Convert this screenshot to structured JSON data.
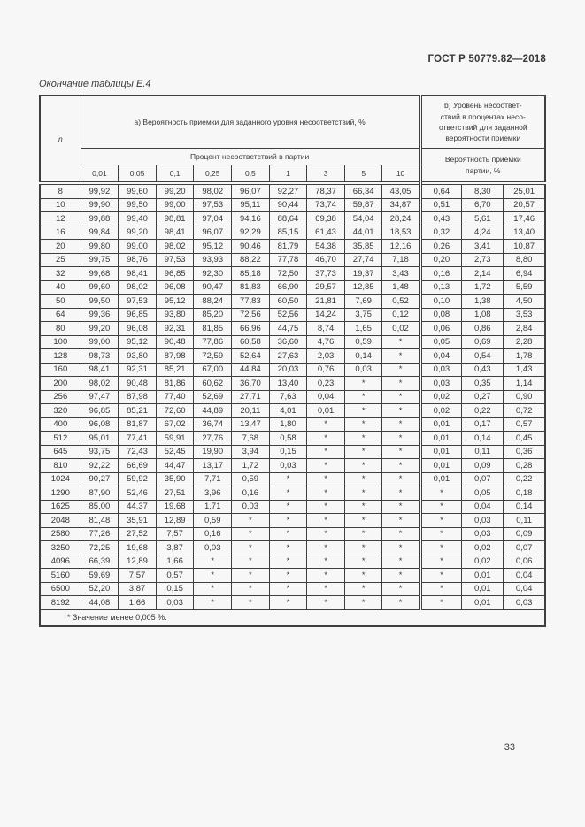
{
  "page": {
    "header_right": "ГОСТ Р 50779.82—2018",
    "table_caption": "Окончание таблицы Е.4",
    "page_number": "33"
  },
  "colors": {
    "page_bg": "#f7f7f8",
    "text": "#383838",
    "border": "#3f3f3f"
  },
  "table": {
    "col_n_label": "n",
    "section_a_header": "а) Вероятность приемки для заданного уровня несоответствий, %",
    "section_b_header": "b) Уровень несоответ-\nствий в процентах несо-\nответствий для заданной\nвероятности приемки",
    "subheader_a": "Процент несоответствий в партии",
    "subheader_b": "Вероятность приемки\nпартии, %",
    "percent_columns": [
      "0,01",
      "0,05",
      "0,1",
      "0,25",
      "0,5",
      "1",
      "3",
      "5",
      "10"
    ],
    "footnote": "* Значение менее 0,005 %.",
    "rows": [
      {
        "n": "8",
        "a": [
          "99,92",
          "99,60",
          "99,20",
          "98,02",
          "96,07",
          "92,27",
          "78,37",
          "66,34",
          "43,05"
        ],
        "b": [
          "0,64",
          "8,30",
          "25,01"
        ]
      },
      {
        "n": "10",
        "a": [
          "99,90",
          "99,50",
          "99,00",
          "97,53",
          "95,11",
          "90,44",
          "73,74",
          "59,87",
          "34,87"
        ],
        "b": [
          "0,51",
          "6,70",
          "20,57"
        ]
      },
      {
        "n": "12",
        "a": [
          "99,88",
          "99,40",
          "98,81",
          "97,04",
          "94,16",
          "88,64",
          "69,38",
          "54,04",
          "28,24"
        ],
        "b": [
          "0,43",
          "5,61",
          "17,46"
        ]
      },
      {
        "n": "16",
        "a": [
          "99,84",
          "99,20",
          "98,41",
          "96,07",
          "92,29",
          "85,15",
          "61,43",
          "44,01",
          "18,53"
        ],
        "b": [
          "0,32",
          "4,24",
          "13,40"
        ]
      },
      {
        "n": "20",
        "a": [
          "99,80",
          "99,00",
          "98,02",
          "95,12",
          "90,46",
          "81,79",
          "54,38",
          "35,85",
          "12,16"
        ],
        "b": [
          "0,26",
          "3,41",
          "10,87"
        ]
      },
      {
        "n": "25",
        "a": [
          "99,75",
          "98,76",
          "97,53",
          "93,93",
          "88,22",
          "77,78",
          "46,70",
          "27,74",
          "7,18"
        ],
        "b": [
          "0,20",
          "2,73",
          "8,80"
        ]
      },
      {
        "n": "32",
        "a": [
          "99,68",
          "98,41",
          "96,85",
          "92,30",
          "85,18",
          "72,50",
          "37,73",
          "19,37",
          "3,43"
        ],
        "b": [
          "0,16",
          "2,14",
          "6,94"
        ]
      },
      {
        "n": "40",
        "a": [
          "99,60",
          "98,02",
          "96,08",
          "90,47",
          "81,83",
          "66,90",
          "29,57",
          "12,85",
          "1,48"
        ],
        "b": [
          "0,13",
          "1,72",
          "5,59"
        ]
      },
      {
        "n": "50",
        "a": [
          "99,50",
          "97,53",
          "95,12",
          "88,24",
          "77,83",
          "60,50",
          "21,81",
          "7,69",
          "0,52"
        ],
        "b": [
          "0,10",
          "1,38",
          "4,50"
        ]
      },
      {
        "n": "64",
        "a": [
          "99,36",
          "96,85",
          "93,80",
          "85,20",
          "72,56",
          "52,56",
          "14,24",
          "3,75",
          "0,12"
        ],
        "b": [
          "0,08",
          "1,08",
          "3,53"
        ]
      },
      {
        "n": "80",
        "a": [
          "99,20",
          "96,08",
          "92,31",
          "81,85",
          "66,96",
          "44,75",
          "8,74",
          "1,65",
          "0,02"
        ],
        "b": [
          "0,06",
          "0,86",
          "2,84"
        ]
      },
      {
        "n": "100",
        "a": [
          "99,00",
          "95,12",
          "90,48",
          "77,86",
          "60,58",
          "36,60",
          "4,76",
          "0,59",
          "*"
        ],
        "b": [
          "0,05",
          "0,69",
          "2,28"
        ]
      },
      {
        "n": "128",
        "a": [
          "98,73",
          "93,80",
          "87,98",
          "72,59",
          "52,64",
          "27,63",
          "2,03",
          "0,14",
          "*"
        ],
        "b": [
          "0,04",
          "0,54",
          "1,78"
        ]
      },
      {
        "n": "160",
        "a": [
          "98,41",
          "92,31",
          "85,21",
          "67,00",
          "44,84",
          "20,03",
          "0,76",
          "0,03",
          "*"
        ],
        "b": [
          "0,03",
          "0,43",
          "1,43"
        ]
      },
      {
        "n": "200",
        "a": [
          "98,02",
          "90,48",
          "81,86",
          "60,62",
          "36,70",
          "13,40",
          "0,23",
          "*",
          "*"
        ],
        "b": [
          "0,03",
          "0,35",
          "1,14"
        ]
      },
      {
        "n": "256",
        "a": [
          "97,47",
          "87,98",
          "77,40",
          "52,69",
          "27,71",
          "7,63",
          "0,04",
          "*",
          "*"
        ],
        "b": [
          "0,02",
          "0,27",
          "0,90"
        ]
      },
      {
        "n": "320",
        "a": [
          "96,85",
          "85,21",
          "72,60",
          "44,89",
          "20,11",
          "4,01",
          "0,01",
          "*",
          "*"
        ],
        "b": [
          "0,02",
          "0,22",
          "0,72"
        ]
      },
      {
        "n": "400",
        "a": [
          "96,08",
          "81,87",
          "67,02",
          "36,74",
          "13,47",
          "1,80",
          "*",
          "*",
          "*"
        ],
        "b": [
          "0,01",
          "0,17",
          "0,57"
        ]
      },
      {
        "n": "512",
        "a": [
          "95,01",
          "77,41",
          "59,91",
          "27,76",
          "7,68",
          "0,58",
          "*",
          "*",
          "*"
        ],
        "b": [
          "0,01",
          "0,14",
          "0,45"
        ]
      },
      {
        "n": "645",
        "a": [
          "93,75",
          "72,43",
          "52,45",
          "19,90",
          "3,94",
          "0,15",
          "*",
          "*",
          "*"
        ],
        "b": [
          "0,01",
          "0,11",
          "0,36"
        ]
      },
      {
        "n": "810",
        "a": [
          "92,22",
          "66,69",
          "44,47",
          "13,17",
          "1,72",
          "0,03",
          "*",
          "*",
          "*"
        ],
        "b": [
          "0,01",
          "0,09",
          "0,28"
        ]
      },
      {
        "n": "1024",
        "a": [
          "90,27",
          "59,92",
          "35,90",
          "7,71",
          "0,59",
          "*",
          "*",
          "*",
          "*"
        ],
        "b": [
          "0,01",
          "0,07",
          "0,22"
        ]
      },
      {
        "n": "1290",
        "a": [
          "87,90",
          "52,46",
          "27,51",
          "3,96",
          "0,16",
          "*",
          "*",
          "*",
          "*"
        ],
        "b": [
          "*",
          "0,05",
          "0,18"
        ]
      },
      {
        "n": "1625",
        "a": [
          "85,00",
          "44,37",
          "19,68",
          "1,71",
          "0,03",
          "*",
          "*",
          "*",
          "*"
        ],
        "b": [
          "*",
          "0,04",
          "0,14"
        ]
      },
      {
        "n": "2048",
        "a": [
          "81,48",
          "35,91",
          "12,89",
          "0,59",
          "*",
          "*",
          "*",
          "*",
          "*"
        ],
        "b": [
          "*",
          "0,03",
          "0,11"
        ]
      },
      {
        "n": "2580",
        "a": [
          "77,26",
          "27,52",
          "7,57",
          "0,16",
          "*",
          "*",
          "*",
          "*",
          "*"
        ],
        "b": [
          "*",
          "0,03",
          "0,09"
        ]
      },
      {
        "n": "3250",
        "a": [
          "72,25",
          "19,68",
          "3,87",
          "0,03",
          "*",
          "*",
          "*",
          "*",
          "*"
        ],
        "b": [
          "*",
          "0,02",
          "0,07"
        ]
      },
      {
        "n": "4096",
        "a": [
          "66,39",
          "12,89",
          "1,66",
          "*",
          "*",
          "*",
          "*",
          "*",
          "*"
        ],
        "b": [
          "*",
          "0,02",
          "0,06"
        ]
      },
      {
        "n": "5160",
        "a": [
          "59,69",
          "7,57",
          "0,57",
          "*",
          "*",
          "*",
          "*",
          "*",
          "*"
        ],
        "b": [
          "*",
          "0,01",
          "0,04"
        ]
      },
      {
        "n": "6500",
        "a": [
          "52,20",
          "3,87",
          "0,15",
          "*",
          "*",
          "*",
          "*",
          "*",
          "*"
        ],
        "b": [
          "*",
          "0,01",
          "0,04"
        ]
      },
      {
        "n": "8192",
        "a": [
          "44,08",
          "1,66",
          "0,03",
          "*",
          "*",
          "*",
          "*",
          "*",
          "*"
        ],
        "b": [
          "*",
          "0,01",
          "0,03"
        ]
      }
    ]
  }
}
